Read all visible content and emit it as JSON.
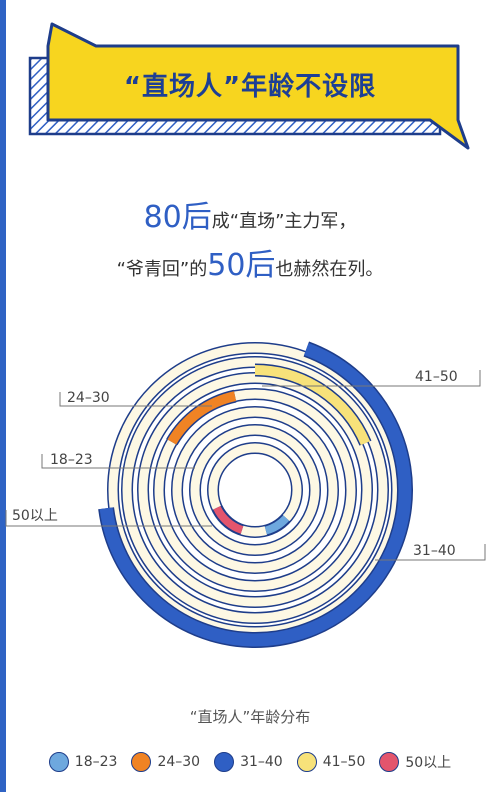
{
  "banner": {
    "title": "“直场人”年龄不设限"
  },
  "headline": {
    "line1_big": "80后",
    "line1_rest": "成“直场”主力军，",
    "line2_pre": "“爷青回”的",
    "line2_big": "50后",
    "line2_post": "也赫然在列。"
  },
  "colors": {
    "navy": "#1e3d8a",
    "blue_band": "#2f5fc4",
    "cream": "#fdf8e4",
    "yellow": "#f7e27a",
    "light_blue": "#6ea8de",
    "orange": "#f08324",
    "red": "#e3556d"
  },
  "chart_data": {
    "type": "radial-bar",
    "title": "“直场人”年龄分布",
    "categories": [
      "18-23",
      "24-30",
      "31-40",
      "41-50",
      "50以上"
    ],
    "legend": [
      "18–23",
      "24–30",
      "31–40",
      "41–50",
      "50以上"
    ],
    "values_deg": [
      33,
      48,
      243,
      67,
      47
    ],
    "annotations": [
      "41–50",
      "24–30",
      "18–23",
      "50以上",
      "31–40"
    ],
    "legend_position": "bottom"
  }
}
